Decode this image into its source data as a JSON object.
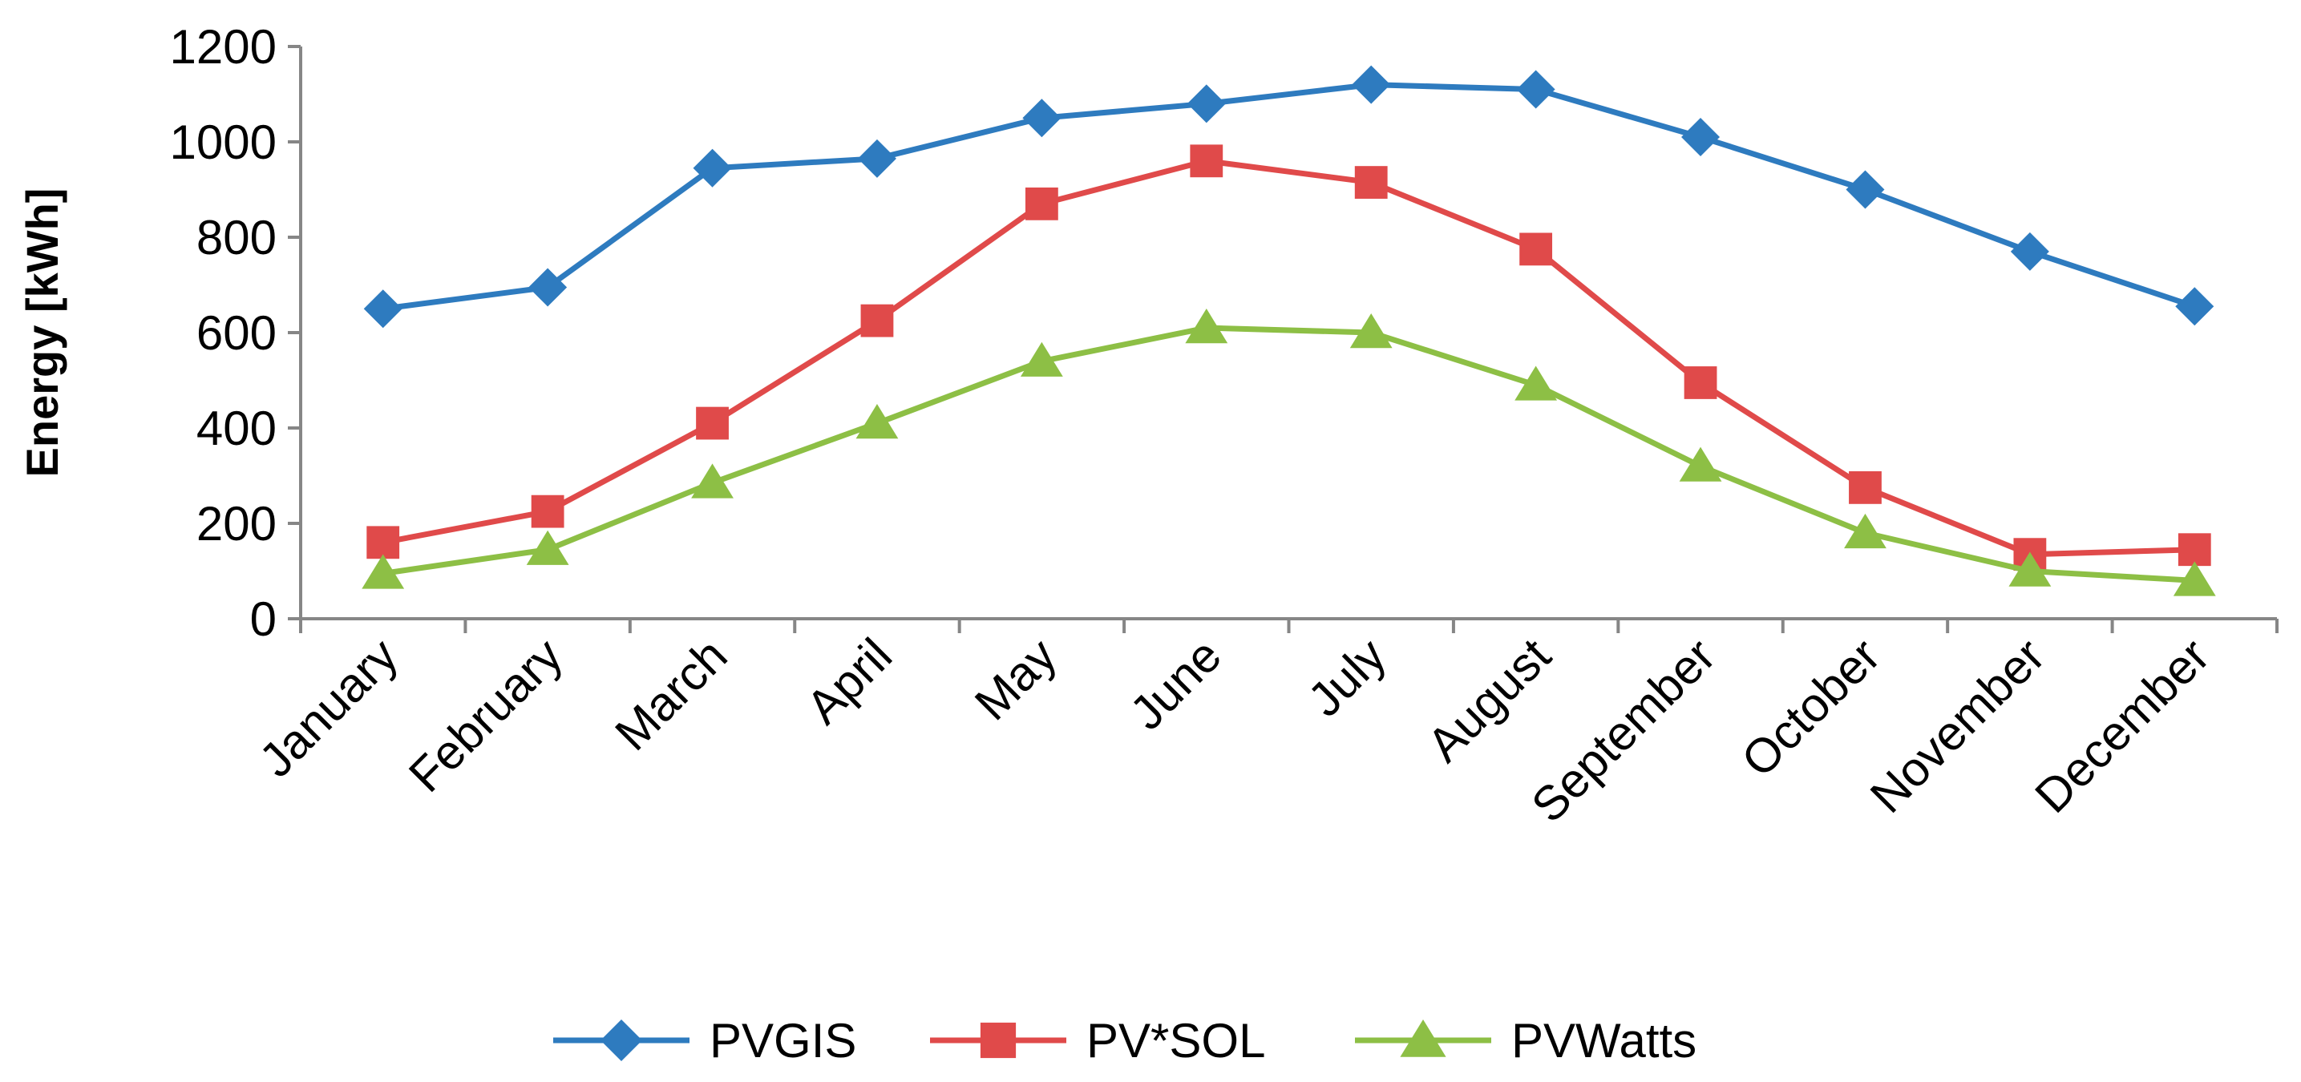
{
  "chart_data": {
    "type": "line",
    "title": "",
    "xlabel": "",
    "ylabel": "Energy [kWh]",
    "ylim": [
      0,
      1200
    ],
    "yticks": [
      0,
      200,
      400,
      600,
      800,
      1000,
      1200
    ],
    "grid": false,
    "legend_position": "bottom",
    "categories": [
      "January",
      "February",
      "March",
      "April",
      "May",
      "June",
      "July",
      "August",
      "September",
      "October",
      "November",
      "December"
    ],
    "series": [
      {
        "name": "PVGIS",
        "color": "#2E7BBF",
        "marker": "diamond",
        "values": [
          650,
          695,
          945,
          965,
          1050,
          1080,
          1120,
          1110,
          1010,
          900,
          770,
          655
        ]
      },
      {
        "name": "PV*SOL",
        "color": "#E04A4A",
        "marker": "square",
        "values": [
          160,
          225,
          410,
          625,
          870,
          960,
          915,
          775,
          495,
          275,
          135,
          145
        ]
      },
      {
        "name": "PVWatts",
        "color": "#8DBF45",
        "marker": "triangle",
        "values": [
          95,
          145,
          285,
          410,
          540,
          610,
          600,
          490,
          320,
          180,
          100,
          80
        ]
      }
    ]
  }
}
